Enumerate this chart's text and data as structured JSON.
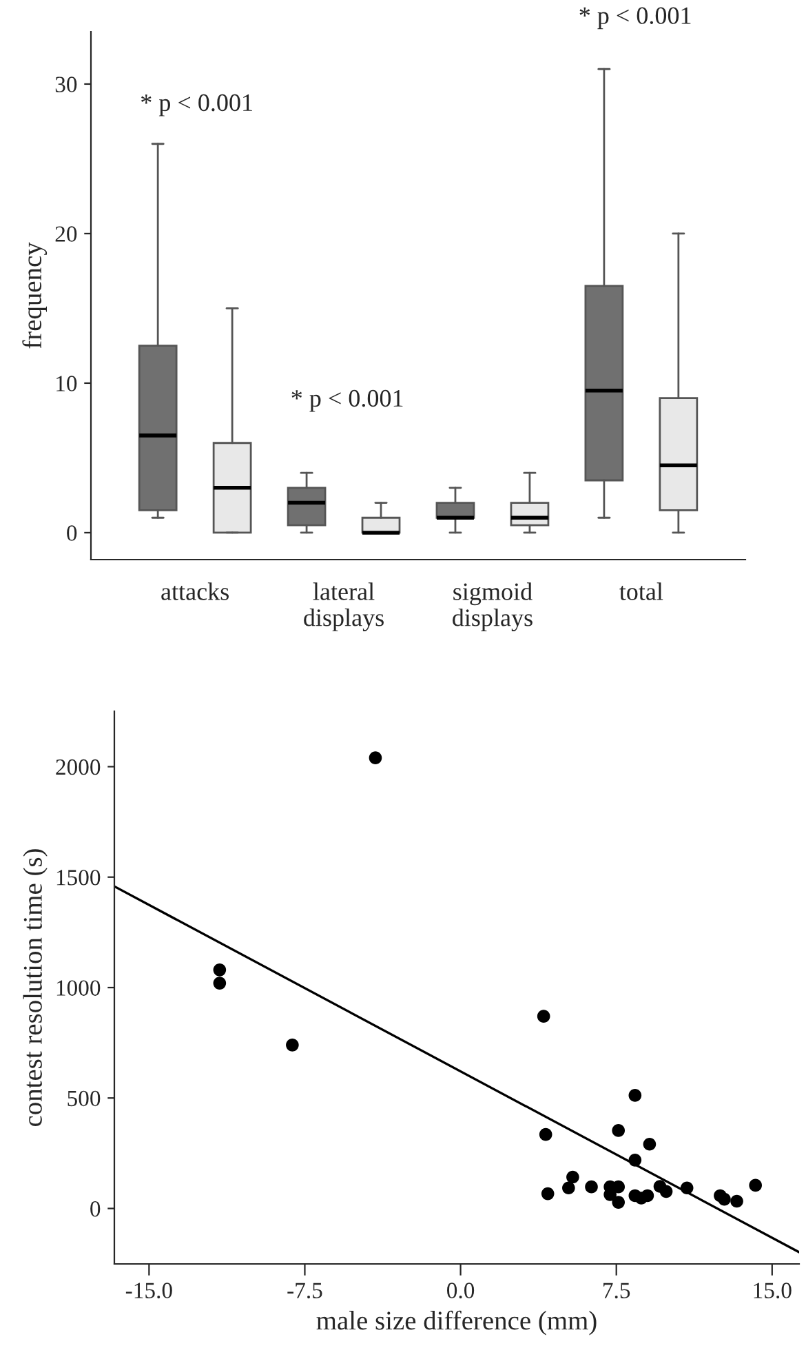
{
  "chart_data": [
    {
      "type": "box",
      "ylabel": "frequency",
      "categories": [
        "attacks",
        "lateral\ndisplays",
        "sigmoid\ndisplays",
        "total"
      ],
      "ylim": [
        -1.8,
        33.5
      ],
      "yticks": [
        0,
        10,
        20,
        30
      ],
      "grid": false,
      "legend": false,
      "series": [
        {
          "color": "#707070",
          "boxes": [
            {
              "low": 1,
              "q1": 1.5,
              "median": 6.5,
              "q3": 12.5,
              "high": 26
            },
            {
              "low": 0,
              "q1": 0.5,
              "median": 2,
              "q3": 3,
              "high": 4
            },
            {
              "low": 0,
              "q1": 1,
              "median": 1,
              "q3": 2,
              "high": 3
            },
            {
              "low": 1,
              "q1": 3.5,
              "median": 9.5,
              "q3": 16.5,
              "high": 31
            }
          ]
        },
        {
          "color": "#e8e8e8",
          "boxes": [
            {
              "low": 0,
              "q1": 0,
              "median": 3,
              "q3": 6,
              "high": 15
            },
            {
              "low": 0,
              "q1": 0,
              "median": 0,
              "q3": 1,
              "high": 2
            },
            {
              "low": 0,
              "q1": 0.5,
              "median": 1,
              "q3": 2,
              "high": 4
            },
            {
              "low": 0,
              "q1": 1.5,
              "median": 4.5,
              "q3": 9,
              "high": 20
            }
          ]
        }
      ],
      "annotations": [
        "* p < 0.001",
        "* p < 0.001",
        "* p < 0.001"
      ]
    },
    {
      "type": "scatter",
      "xlabel": "male size difference (mm)",
      "ylabel": "contest resolution time (s)",
      "xlim": [
        -16.67,
        16.3
      ],
      "ylim": [
        -251,
        2251
      ],
      "xticks": [
        {
          "value": -15,
          "label": "-15.0"
        },
        {
          "value": -7.5,
          "label": "-7.5"
        },
        {
          "value": 0,
          "label": "0.0"
        },
        {
          "value": 7.5,
          "label": "7.5"
        },
        {
          "value": 15,
          "label": "15.0"
        }
      ],
      "yticks": [
        0,
        500,
        1000,
        1500,
        2000
      ],
      "grid": false,
      "legend": false,
      "series": [
        {
          "type": "scatter",
          "marker": "circle",
          "color": "#000000",
          "x": [
            -4.1,
            -11.6,
            -11.6,
            -8.1,
            4.0,
            4.1,
            4.2,
            5.2,
            5.4,
            6.3,
            7.2,
            7.2,
            7.6,
            7.6,
            7.6,
            8.4,
            8.4,
            8.4,
            8.7,
            9.0,
            9.1,
            9.6,
            9.9,
            10.9,
            12.5,
            12.7,
            13.3,
            14.2
          ],
          "values": [
            2040,
            1080,
            1020,
            740,
            870,
            335,
            67,
            93,
            142,
            98,
            98,
            63,
            98,
            28,
            353,
            512,
            219,
            58,
            47,
            58,
            291,
            100,
            77,
            93,
            58,
            42,
            33,
            105
          ]
        },
        {
          "type": "line",
          "color": "#000000",
          "x": [
            -16.67,
            16.3
          ],
          "values": [
            1458,
            -198
          ]
        }
      ]
    }
  ]
}
